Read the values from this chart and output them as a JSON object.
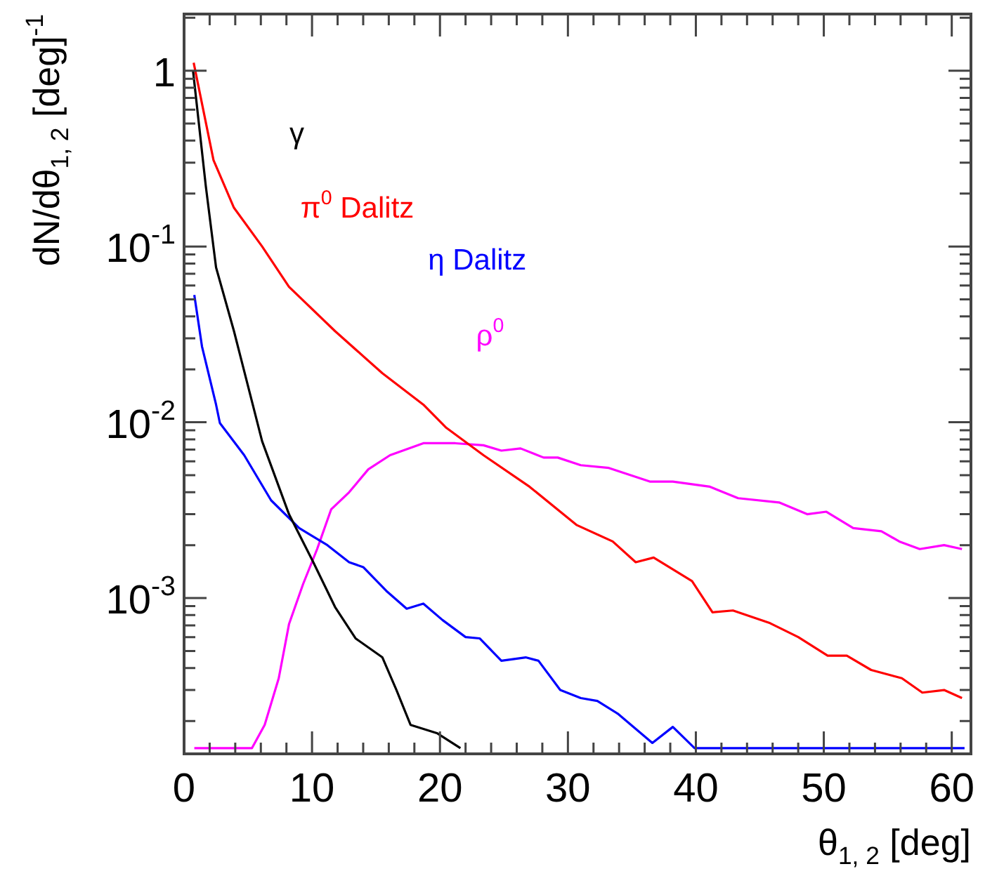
{
  "chart_data": {
    "type": "line",
    "xlabel": "θ$_{1, 2}$ [deg]",
    "ylabel": "dN/dθ$_{1, 2}$ [deg]$^{-1}$",
    "log": "y",
    "marker": "none",
    "line_style": "solid",
    "grid": false,
    "legend": false,
    "xlim": [
      0,
      61.5
    ],
    "ylim": [
      0.00013,
      2.1
    ],
    "xticks": [
      0,
      {
        "value": 2,
        "label": null
      },
      {
        "value": 4,
        "label": null
      },
      {
        "value": 6,
        "label": null
      },
      {
        "value": 8,
        "label": null
      },
      10,
      {
        "value": 12,
        "label": null
      },
      {
        "value": 14,
        "label": null
      },
      {
        "value": 16,
        "label": null
      },
      {
        "value": 18,
        "label": null
      },
      20,
      {
        "value": 22,
        "label": null
      },
      {
        "value": 24,
        "label": null
      },
      {
        "value": 26,
        "label": null
      },
      {
        "value": 28,
        "label": null
      },
      30,
      {
        "value": 32,
        "label": null
      },
      {
        "value": 34,
        "label": null
      },
      {
        "value": 36,
        "label": null
      },
      {
        "value": 38,
        "label": null
      },
      40,
      {
        "value": 42,
        "label": null
      },
      {
        "value": 44,
        "label": null
      },
      {
        "value": 46,
        "label": null
      },
      {
        "value": 48,
        "label": null
      },
      50,
      {
        "value": 52,
        "label": null
      },
      {
        "value": 54,
        "label": null
      },
      {
        "value": 56,
        "label": null
      },
      {
        "value": 58,
        "label": null
      },
      60
    ],
    "yticks": [
      {
        "value": 0.0002,
        "label": null
      },
      {
        "value": 0.0003,
        "label": null
      },
      {
        "value": 0.0004,
        "label": null
      },
      {
        "value": 0.0005,
        "label": null
      },
      {
        "value": 0.0006,
        "label": null
      },
      {
        "value": 0.0007,
        "label": null
      },
      {
        "value": 0.0008,
        "label": null
      },
      {
        "value": 0.0009,
        "label": null
      },
      {
        "value": 0.001,
        "label": "10$^{-3}$"
      },
      {
        "value": 0.002,
        "label": null
      },
      {
        "value": 0.003,
        "label": null
      },
      {
        "value": 0.004,
        "label": null
      },
      {
        "value": 0.005,
        "label": null
      },
      {
        "value": 0.006,
        "label": null
      },
      {
        "value": 0.007,
        "label": null
      },
      {
        "value": 0.008,
        "label": null
      },
      {
        "value": 0.009,
        "label": null
      },
      {
        "value": 0.01,
        "label": "10$^{-2}$"
      },
      {
        "value": 0.02,
        "label": null
      },
      {
        "value": 0.03,
        "label": null
      },
      {
        "value": 0.04,
        "label": null
      },
      {
        "value": 0.05,
        "label": null
      },
      {
        "value": 0.06,
        "label": null
      },
      {
        "value": 0.07,
        "label": null
      },
      {
        "value": 0.08,
        "label": null
      },
      {
        "value": 0.09,
        "label": null
      },
      {
        "value": 0.1,
        "label": "10$^{-1}$"
      },
      {
        "value": 0.2,
        "label": null
      },
      {
        "value": 0.3,
        "label": null
      },
      {
        "value": 0.4,
        "label": null
      },
      {
        "value": 0.5,
        "label": null
      },
      {
        "value": 0.6,
        "label": null
      },
      {
        "value": 0.7,
        "label": null
      },
      {
        "value": 0.8,
        "label": null
      },
      {
        "value": 0.9,
        "label": null
      },
      1,
      {
        "value": 2,
        "label": null
      }
    ],
    "series": [
      {
        "name": "γ",
        "color": "#000000",
        "x": [
          0.7,
          1.7,
          2.5,
          3.9,
          6.1,
          8.2,
          10.1,
          11.8,
          13.4,
          15.5,
          16.6,
          17.7,
          19.8,
          21.6
        ],
        "values": [
          1.0,
          0.22,
          0.076,
          0.033,
          0.0078,
          0.003,
          0.0016,
          0.00089,
          0.00059,
          0.00046,
          0.0003,
          0.00019,
          0.00017,
          0.00014
        ]
      },
      {
        "name": "π$^{0}$ Dalitz",
        "color": "#ff0000",
        "x": [
          0.75,
          2.3,
          3.9,
          6.1,
          8.2,
          11.8,
          15.5,
          18.7,
          20.5,
          23.4,
          27,
          30.7,
          33.5,
          35.3,
          36.7,
          39.7,
          41.3,
          42.9,
          45.8,
          48,
          50.3,
          51.8,
          53.7,
          56.1,
          57.7,
          59.4,
          60.8
        ],
        "values": [
          1.11,
          0.31,
          0.166,
          0.1,
          0.059,
          0.033,
          0.019,
          0.0126,
          0.0093,
          0.0065,
          0.0043,
          0.0026,
          0.0021,
          0.0016,
          0.0017,
          0.00125,
          0.00083,
          0.00085,
          0.00072,
          0.0006,
          0.00047,
          0.00047,
          0.00039,
          0.00035,
          0.00029,
          0.0003,
          0.00027
        ]
      },
      {
        "name": "η Dalitz",
        "color": "#0000ff",
        "x": [
          0.8,
          1.4,
          2.5,
          2.8,
          4.7,
          6.8,
          9.0,
          11.2,
          12.9,
          14,
          15.8,
          17.4,
          18.7,
          20.2,
          22,
          23.1,
          24.8,
          26.7,
          27.7,
          29.4,
          31,
          32.3,
          33.9,
          36.6,
          38.2,
          39.9,
          41.5,
          61
        ],
        "values": [
          0.053,
          0.027,
          0.0126,
          0.0099,
          0.0065,
          0.0036,
          0.0025,
          0.002,
          0.0016,
          0.0015,
          0.0011,
          0.00087,
          0.00093,
          0.00075,
          0.0006,
          0.00059,
          0.00044,
          0.00046,
          0.00044,
          0.0003,
          0.00027,
          0.00026,
          0.00022,
          0.00015,
          0.000185,
          0.00014,
          0.00014,
          0.00014
        ]
      },
      {
        "name": "ρ$^{0}$",
        "color": "#ff00ff",
        "x": [
          0.8,
          5.3,
          6.3,
          7.4,
          8.2,
          9.3,
          10.4,
          11.5,
          12.9,
          14.4,
          16.1,
          18.7,
          21.2,
          23.4,
          24.8,
          26.3,
          28.1,
          29.2,
          31,
          33.2,
          36.4,
          38.2,
          41.1,
          43.3,
          46.5,
          48.7,
          50.2,
          52.3,
          54.5,
          55.9,
          57.5,
          59.4,
          60.8
        ],
        "values": [
          0.00014,
          0.00014,
          0.00019,
          0.00035,
          0.00071,
          0.0012,
          0.0019,
          0.0032,
          0.004,
          0.0054,
          0.0065,
          0.0076,
          0.0076,
          0.0074,
          0.0069,
          0.0071,
          0.0063,
          0.0063,
          0.0057,
          0.0055,
          0.0046,
          0.0046,
          0.0043,
          0.0037,
          0.0035,
          0.003,
          0.0031,
          0.0025,
          0.0024,
          0.0021,
          0.0019,
          0.002,
          0.0019
        ]
      }
    ]
  }
}
